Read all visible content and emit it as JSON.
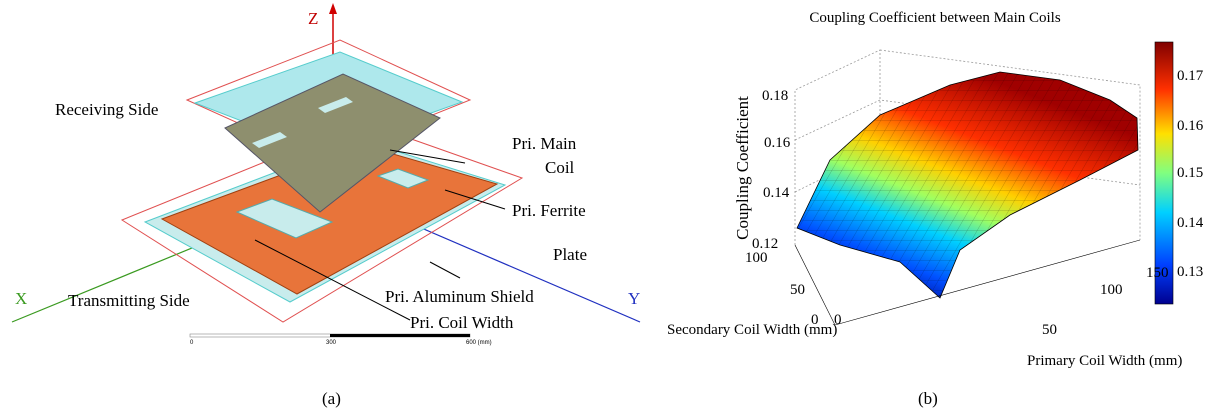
{
  "panel_a": {
    "axis_z": "Z",
    "axis_x": "X",
    "axis_y": "Y",
    "labels": {
      "receiving_side": "Receiving Side",
      "transmitting_side": "Transmitting Side",
      "main_coil": [
        "Pri. Main",
        "Coil"
      ],
      "ferrite_plate": [
        "Pri. Ferrite",
        "Plate"
      ],
      "aluminum_shield": "Pri. Aluminum Shield",
      "coil_width": "Pri. Coil Width"
    },
    "scale_bar": [
      "0",
      "300",
      "600 (mm)"
    ],
    "caption": "(a)"
  },
  "panel_b": {
    "title": "Coupling Coefficient between Main Coils",
    "z_label": "Coupling Coefficient",
    "z_ticks": [
      "0.12",
      "0.14",
      "0.16",
      "0.18"
    ],
    "secondary_label": "Secondary Coil Width (mm)",
    "secondary_ticks": [
      "0",
      "50",
      "100"
    ],
    "primary_label": "Primary Coil Width (mm)",
    "primary_ticks": [
      "0",
      "50",
      "100",
      "150"
    ],
    "colorbar_ticks": [
      "0.13",
      "0.14",
      "0.15",
      "0.16",
      "0.17"
    ],
    "caption": "(b)"
  }
}
